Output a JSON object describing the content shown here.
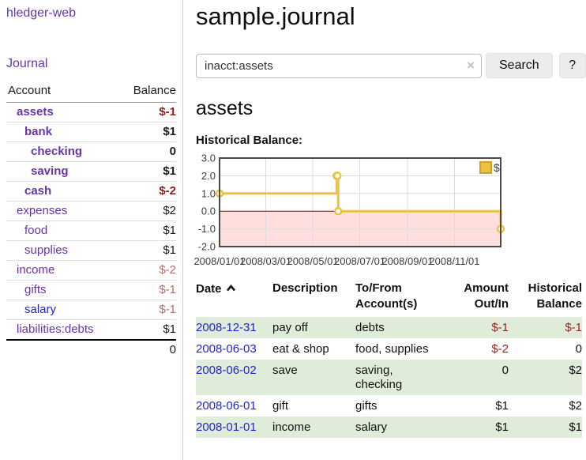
{
  "sidebar": {
    "brand": "hledger-web",
    "nav_journal": "Journal",
    "accounts": {
      "headers": {
        "account": "Account",
        "balance": "Balance"
      },
      "rows": [
        {
          "name": "assets",
          "depth": 1,
          "balance": "$-1",
          "in_account": true,
          "negative": true,
          "link_color": "purple"
        },
        {
          "name": "bank",
          "depth": 2,
          "balance": "$1",
          "in_account": true,
          "negative": false,
          "link_color": "purple"
        },
        {
          "name": "checking",
          "depth": 3,
          "balance": "0",
          "in_account": true,
          "negative": false,
          "link_color": "purple"
        },
        {
          "name": "saving",
          "depth": 3,
          "balance": "$1",
          "in_account": true,
          "negative": false,
          "link_color": "purple"
        },
        {
          "name": "cash",
          "depth": 2,
          "balance": "$-2",
          "in_account": true,
          "negative": true,
          "link_color": "purple"
        },
        {
          "name": "expenses",
          "depth": 1,
          "balance": "$2",
          "in_account": false,
          "negative": false,
          "link_color": "purple"
        },
        {
          "name": "food",
          "depth": 2,
          "balance": "$1",
          "in_account": false,
          "negative": false,
          "link_color": "purple"
        },
        {
          "name": "supplies",
          "depth": 2,
          "balance": "$1",
          "in_account": false,
          "negative": false,
          "link_color": "purple"
        },
        {
          "name": "income",
          "depth": 1,
          "balance": "$-2",
          "in_account": false,
          "negative": true,
          "link_color": "purple"
        },
        {
          "name": "gifts",
          "depth": 2,
          "balance": "$-1",
          "in_account": false,
          "negative": true,
          "link_color": "purple"
        },
        {
          "name": "salary",
          "depth": 2,
          "balance": "$-1",
          "in_account": false,
          "negative": true,
          "link_color": "blue"
        },
        {
          "name": "liabilities:debts",
          "depth": 1,
          "balance": "$1",
          "in_account": false,
          "negative": false,
          "link_color": "purple"
        }
      ],
      "total": "0"
    }
  },
  "main": {
    "title": "sample.journal",
    "search": {
      "value": "inacct:assets",
      "clear_icon": "×",
      "button_label": "Search",
      "help_label": "?"
    },
    "account_heading": "assets",
    "chart_title": "Historical Balance:"
  },
  "chart_data": {
    "type": "line",
    "title": "Historical Balance:",
    "series": [
      {
        "name": "$",
        "color": "#edc240",
        "step": true,
        "points": [
          [
            "2008-01-01",
            1
          ],
          [
            "2008-06-01",
            2
          ],
          [
            "2008-06-02",
            2
          ],
          [
            "2008-06-03",
            0
          ],
          [
            "2008-12-31",
            -1
          ]
        ]
      }
    ],
    "x_ticks": [
      "2008/01/01",
      "2008/03/01",
      "2008/05/01",
      "2008/07/01",
      "2008/09/01",
      "2008/11/01"
    ],
    "y_ticks": [
      3.0,
      2.0,
      1.0,
      0.0,
      -1.0,
      -2.0
    ],
    "xlim": [
      "2008-01-01",
      "2008-12-31"
    ],
    "ylim": [
      -2,
      3
    ],
    "grid": true,
    "legend": {
      "label": "$",
      "position": "top-right"
    },
    "grid_color": "#dcdcdc",
    "border_color": "#4a4a4a",
    "tick_color": "#3c3c3c",
    "zero_line_color": "#8b0000",
    "negative_region_color": "#ffdede",
    "legend_swatch_border": "#c9a227"
  },
  "register": {
    "headers": [
      "Date",
      "Description",
      "To/From Account(s)",
      "Amount Out/In",
      "Historical Balance"
    ],
    "rows": [
      {
        "date": "2008-12-31",
        "description": "pay off",
        "accounts": "debts",
        "amount": "$-1",
        "balance": "$-1",
        "amount_negative": true,
        "balance_negative": true
      },
      {
        "date": "2008-06-03",
        "description": "eat & shop",
        "accounts": "food, supplies",
        "amount": "$-2",
        "balance": "0",
        "amount_negative": true,
        "balance_negative": false
      },
      {
        "date": "2008-06-02",
        "description": "save",
        "accounts": "saving, checking",
        "amount": "0",
        "balance": "$2",
        "amount_negative": false,
        "balance_negative": false
      },
      {
        "date": "2008-06-01",
        "description": "gift",
        "accounts": "gifts",
        "amount": "$1",
        "balance": "$2",
        "amount_negative": false,
        "balance_negative": false
      },
      {
        "date": "2008-01-01",
        "description": "income",
        "accounts": "salary",
        "amount": "$1",
        "balance": "$1",
        "amount_negative": false,
        "balance_negative": false
      }
    ]
  },
  "colors": {
    "purple_link": "#6935a3",
    "blue_link": "#2424cf",
    "negative_bold": "#8f1a1a",
    "negative_muted": "#b96a6a",
    "register_negative": "#9c2121",
    "row_stripe_green": "#dfecd9",
    "chart_line": "#edc240"
  }
}
